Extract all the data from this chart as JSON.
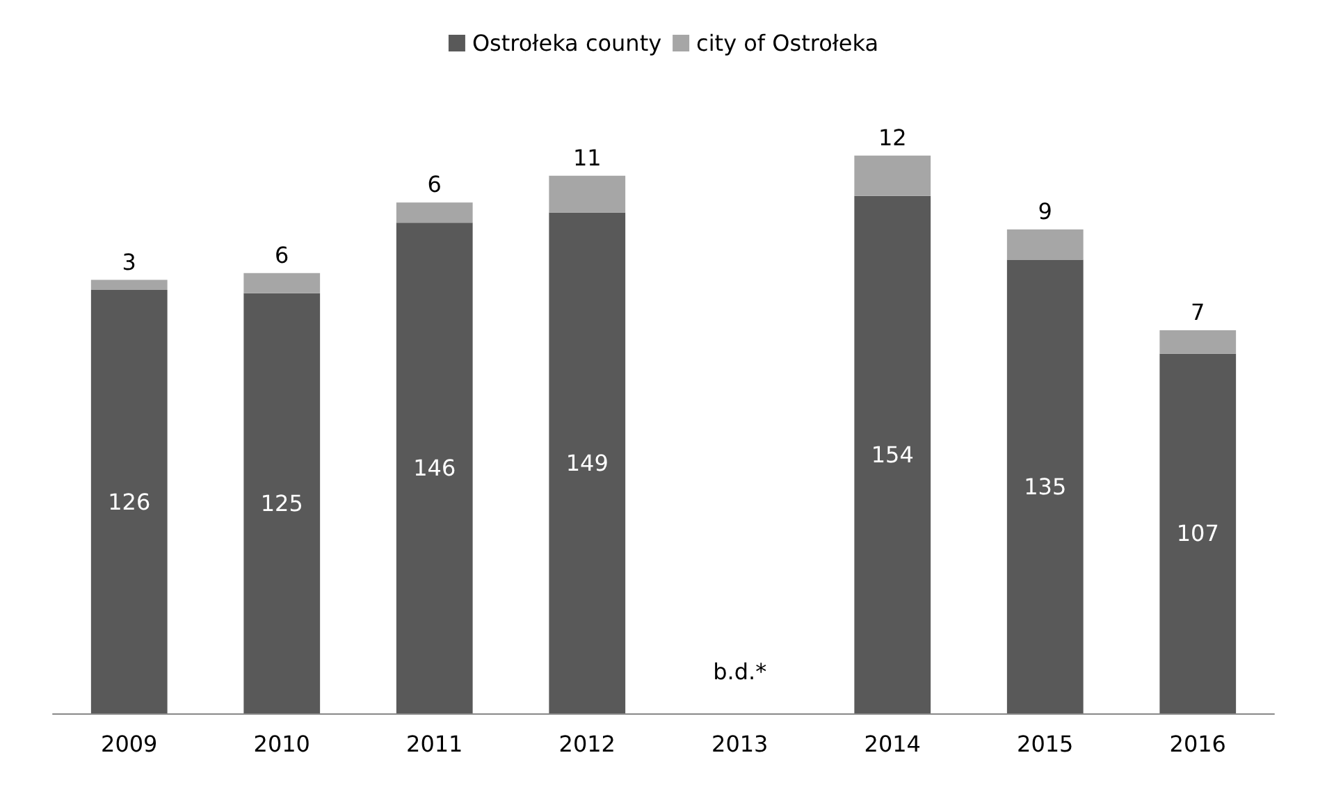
{
  "chart_data": {
    "type": "bar",
    "stacked": true,
    "categories": [
      "2009",
      "2010",
      "2011",
      "2012",
      "2013",
      "2014",
      "2015",
      "2016"
    ],
    "series": [
      {
        "name": "Ostrołeka county",
        "color": "#595959",
        "values": [
          126,
          125,
          146,
          149,
          null,
          154,
          135,
          107
        ]
      },
      {
        "name": "city of Ostrołeka",
        "color": "#a6a6a6",
        "values": [
          3,
          6,
          6,
          11,
          null,
          12,
          9,
          7
        ]
      }
    ],
    "data_labels": true,
    "legend": "top",
    "annotations": [
      "b.d.*"
    ]
  }
}
